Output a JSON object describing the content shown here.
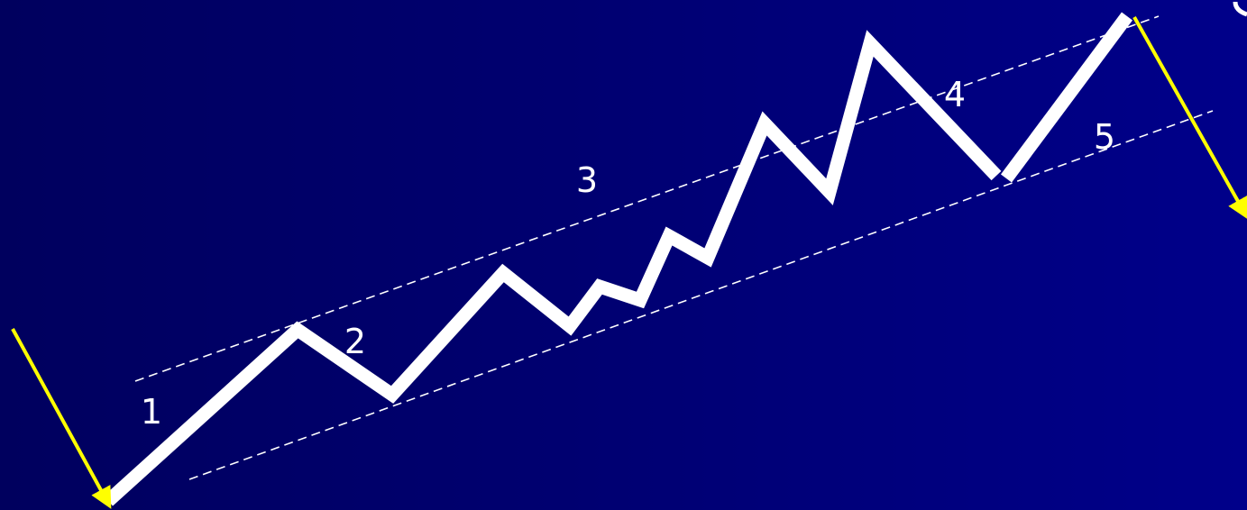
{
  "diagram": {
    "labels": [
      "1",
      "2",
      "3",
      "4",
      "5"
    ],
    "colors": {
      "background": "#000077",
      "wave": "#ffffff",
      "channel": "#ffffff",
      "arrow": "#ffff00",
      "label": "#ffffff"
    }
  }
}
